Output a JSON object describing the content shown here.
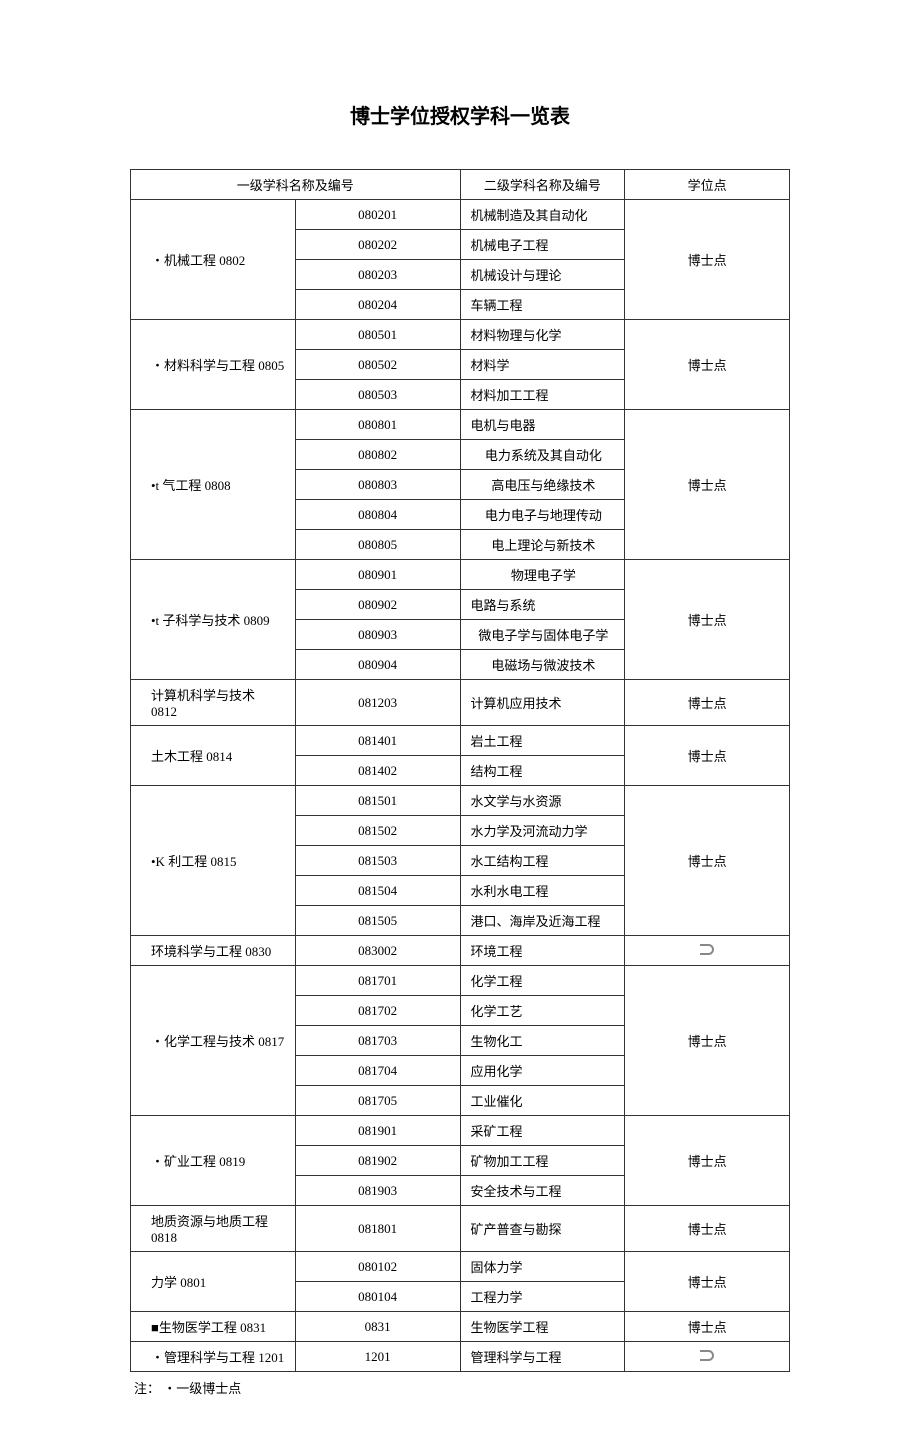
{
  "title": "博士学位授权学科一览表",
  "headers": {
    "level1": "一级学科名称及编号",
    "level2": "二级学科名称及编号",
    "degree": "学位点"
  },
  "groups": [
    {
      "l1": "・机械工程 0802",
      "degree": "博士点",
      "rows": [
        {
          "code": "080201",
          "name": "机械制造及其自动化"
        },
        {
          "code": "080202",
          "name": "机械电子工程"
        },
        {
          "code": "080203",
          "name": "机械设计与理论"
        },
        {
          "code": "080204",
          "name": "车辆工程"
        }
      ]
    },
    {
      "l1": "・材料科学与工程 0805",
      "degree": "博士点",
      "rows": [
        {
          "code": "080501",
          "name": "材料物理与化学"
        },
        {
          "code": "080502",
          "name": "材料学"
        },
        {
          "code": "080503",
          "name": "材料加工工程"
        }
      ]
    },
    {
      "l1": "•t 气工程 0808",
      "degree": "博士点",
      "rows": [
        {
          "code": "080801",
          "name": "电机与电器"
        },
        {
          "code": "080802",
          "name": "电力系统及其自动化",
          "center": true
        },
        {
          "code": "080803",
          "name": "高电压与绝缘技术",
          "center": true
        },
        {
          "code": "080804",
          "name": "电力电子与地理传动",
          "center": true
        },
        {
          "code": "080805",
          "name": "电上理论与新技术",
          "center": true
        }
      ]
    },
    {
      "l1": "•t 子科学与技术 0809",
      "degree": "博士点",
      "rows": [
        {
          "code": "080901",
          "name": "物理电子学",
          "center": true
        },
        {
          "code": "080902",
          "name": "电路与系统"
        },
        {
          "code": "080903",
          "name": "微电子学与固体电子学",
          "center": true
        },
        {
          "code": "080904",
          "name": "电磁场与微波技术",
          "center": true
        }
      ]
    },
    {
      "l1": "计算机科学与技术　0812",
      "degree": "博士点",
      "rows": [
        {
          "code": "081203",
          "name": "计算机应用技术"
        }
      ]
    },
    {
      "l1": "土木工程 0814",
      "degree": "博士点",
      "rows": [
        {
          "code": "081401",
          "name": "岩土工程"
        },
        {
          "code": "081402",
          "name": "结构工程"
        }
      ]
    },
    {
      "l1": "•K 利工程 0815",
      "degree": "博士点",
      "rows": [
        {
          "code": "081501",
          "name": "水文学与水资源"
        },
        {
          "code": "081502",
          "name": "水力学及河流动力学"
        },
        {
          "code": "081503",
          "name": "水工结构工程"
        },
        {
          "code": "081504",
          "name": "水利水电工程"
        },
        {
          "code": "081505",
          "name": "港口、海岸及近海工程"
        }
      ]
    },
    {
      "l1": "环境科学与工程 0830",
      "degree": "icon",
      "rows": [
        {
          "code": "083002",
          "name": "环境工程"
        }
      ]
    },
    {
      "l1": "・化学工程与技术 0817",
      "degree": "博士点",
      "rows": [
        {
          "code": "081701",
          "name": "化学工程"
        },
        {
          "code": "081702",
          "name": "化学工艺"
        },
        {
          "code": "081703",
          "name": "生物化工"
        },
        {
          "code": "081704",
          "name": "应用化学"
        },
        {
          "code": "081705",
          "name": "工业催化"
        }
      ]
    },
    {
      "l1": "・矿业工程 0819",
      "degree": "博士点",
      "rows": [
        {
          "code": "081901",
          "name": "采矿工程"
        },
        {
          "code": "081902",
          "name": "矿物加工工程"
        },
        {
          "code": "081903",
          "name": "安全技术与工程"
        }
      ]
    },
    {
      "l1": "地质资源与地质工程　0818",
      "degree": "博士点",
      "rows": [
        {
          "code": "081801",
          "name": "矿产普查与勘探"
        }
      ]
    },
    {
      "l1": "力学 0801",
      "degree": "博士点",
      "rows": [
        {
          "code": "080102",
          "name": "固体力学"
        },
        {
          "code": "080104",
          "name": "工程力学"
        }
      ]
    },
    {
      "l1": "■生物医学工程 0831",
      "degree": "博士点",
      "rows": [
        {
          "code": "0831",
          "name": "生物医学工程"
        }
      ]
    },
    {
      "l1": "・管理科学与工程 1201",
      "degree": "icon",
      "rows": [
        {
          "code": "1201",
          "name": "管理科学与工程"
        }
      ]
    }
  ],
  "note": "注： ・一级博士点"
}
